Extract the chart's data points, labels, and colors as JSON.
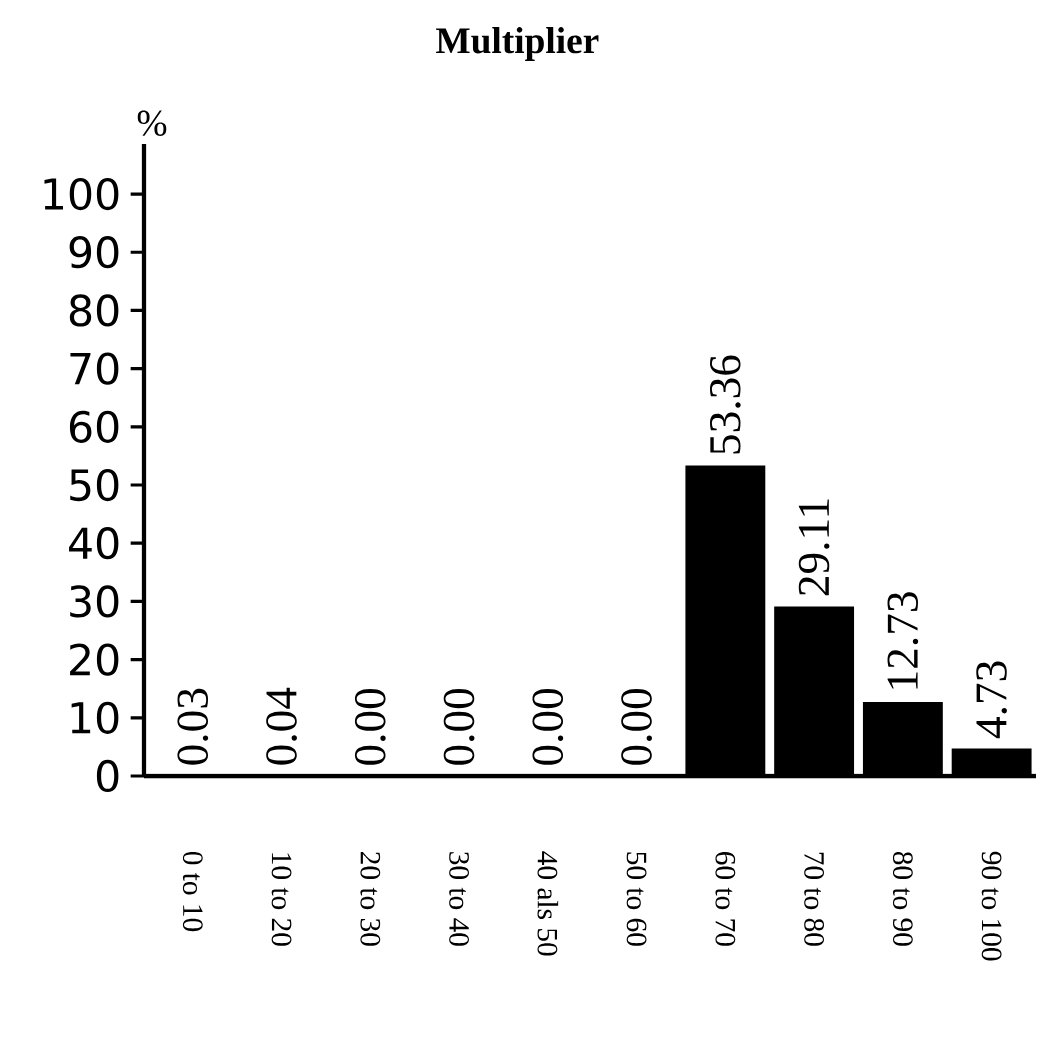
{
  "chart_data": {
    "type": "bar",
    "title": "Multiplier",
    "ylabel": "%",
    "categories": [
      "0 to 10",
      "10 to 20",
      "20 to 30",
      "30 to 40",
      "40 als 50",
      "50 to 60",
      "60 to 70",
      "70 to 80",
      "80 to 90",
      "90 to 100"
    ],
    "values": [
      0.03,
      0.04,
      0.0,
      0.0,
      0.0,
      0.0,
      53.36,
      29.11,
      12.73,
      4.73
    ],
    "value_labels": [
      "0.03",
      "0.04",
      "0.00",
      "0.00",
      "0.00",
      "0.00",
      "53.36",
      "29.11",
      "12.73",
      "4.73"
    ],
    "color": "#000000",
    "ylim": [
      0,
      108.6
    ],
    "yticks": [
      0,
      10,
      20,
      30,
      40,
      50,
      60,
      70,
      80,
      90,
      100
    ]
  }
}
